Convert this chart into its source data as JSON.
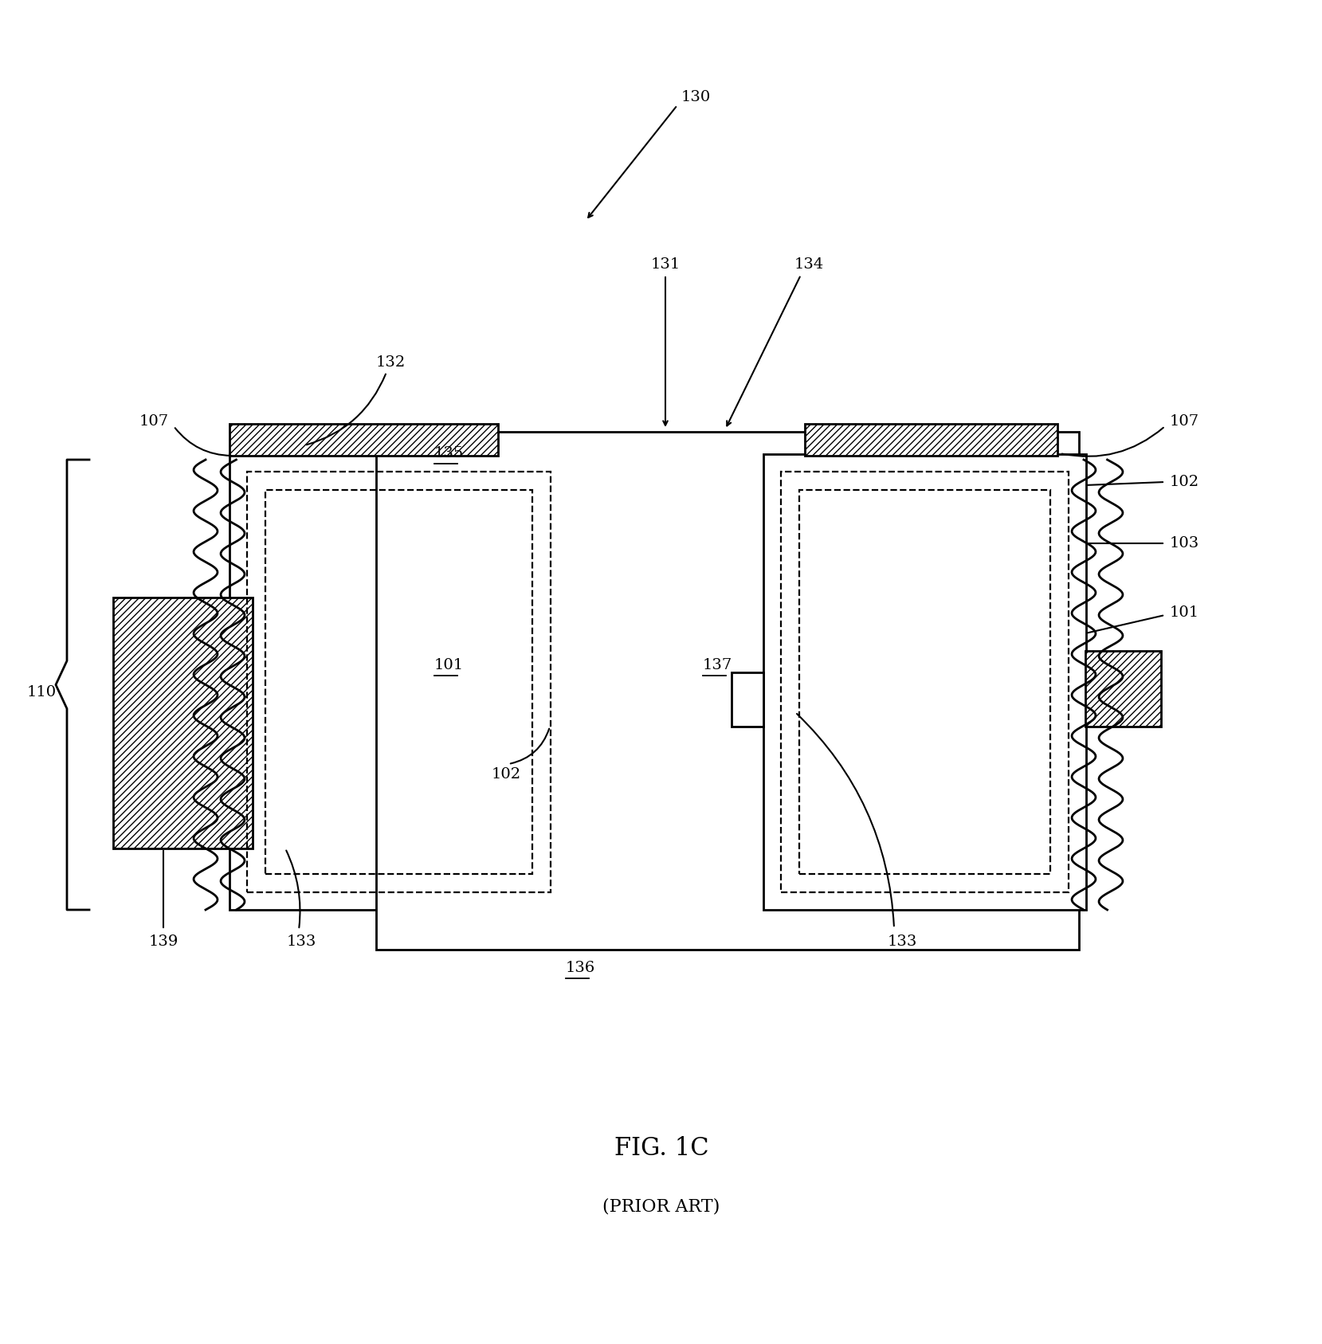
{
  "bg_color": "#ffffff",
  "fig_label": "FIG. 1C",
  "fig_sublabel": "(PRIOR ART)",
  "label_130": "130",
  "label_131": "131",
  "label_132": "132",
  "label_133": "133",
  "label_134": "134",
  "label_135": "135",
  "label_136": "136",
  "label_137": "137",
  "label_139": "139",
  "label_101": "101",
  "label_102": "102",
  "label_103": "103",
  "label_107": "107",
  "label_110": "110",
  "line_color": "#000000",
  "hatch_pattern": "////",
  "font_size_labels": 14,
  "font_size_fig": 22,
  "font_size_sub": 16
}
